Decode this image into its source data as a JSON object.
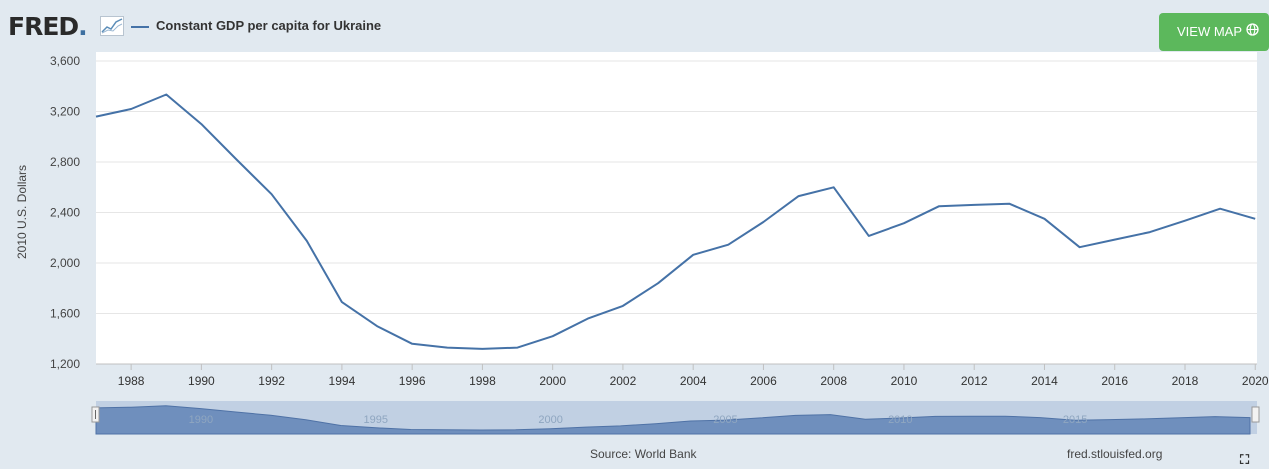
{
  "header": {
    "logo_text": "FRED",
    "series_title": "Constant GDP per capita for Ukraine",
    "view_map_label": "VIEW MAP",
    "colors": {
      "series": "#4572a7",
      "button": "#5cb85c"
    }
  },
  "footer": {
    "source": "Source: World Bank",
    "credit": "fred.stlouisfed.org"
  },
  "navigator": {
    "labels": [
      "1990",
      "1995",
      "2000",
      "2005",
      "2010",
      "2015"
    ]
  },
  "icons": [
    "fred-chart-icon",
    "globe-icon",
    "fullscreen-icon",
    "navigator-handle-icon"
  ],
  "chart_data": {
    "type": "line",
    "title": "Constant GDP per capita for Ukraine",
    "ylabel": "2010 U.S. Dollars",
    "xlabel": "",
    "ylim": [
      1200,
      3600
    ],
    "yticks": [
      1200,
      1600,
      2000,
      2400,
      2800,
      3200,
      3600
    ],
    "ytick_labels": [
      "1,200",
      "1,600",
      "2,000",
      "2,400",
      "2,800",
      "3,200",
      "3,600"
    ],
    "xticks": [
      1988,
      1990,
      1992,
      1994,
      1996,
      1998,
      2000,
      2002,
      2004,
      2006,
      2008,
      2010,
      2012,
      2014,
      2016,
      2018,
      2020
    ],
    "xtick_labels": [
      "1988",
      "1990",
      "1992",
      "1994",
      "1996",
      "1998",
      "2000",
      "2002",
      "2004",
      "2006",
      "2008",
      "2010",
      "2012",
      "2014",
      "2016",
      "2018",
      "2020"
    ],
    "grid": true,
    "series": [
      {
        "name": "Constant GDP per capita for Ukraine",
        "x": [
          1987,
          1988,
          1989,
          1990,
          1991,
          1992,
          1993,
          1994,
          1995,
          1996,
          1997,
          1998,
          1999,
          2000,
          2001,
          2002,
          2003,
          2004,
          2005,
          2006,
          2007,
          2008,
          2009,
          2010,
          2011,
          2012,
          2013,
          2014,
          2015,
          2016,
          2017,
          2018,
          2019,
          2020
        ],
        "values": [
          3160,
          3220,
          3335,
          3100,
          2820,
          2545,
          2175,
          1690,
          1500,
          1360,
          1330,
          1320,
          1330,
          1420,
          1560,
          1660,
          1840,
          2065,
          2145,
          2325,
          2530,
          2600,
          2215,
          2315,
          2450,
          2460,
          2470,
          2350,
          2125,
          2185,
          2245,
          2335,
          2430,
          2350
        ]
      }
    ]
  }
}
